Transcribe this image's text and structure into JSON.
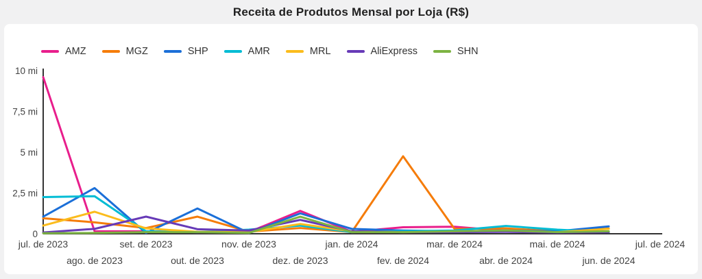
{
  "page": {
    "title": "Receita de Produtos Mensal por Loja (R$)"
  },
  "colors": {
    "page_bg": "#f1f1f2",
    "card_bg": "#ffffff",
    "axis": "#333333",
    "tick_text": "#424242",
    "title_text": "#212121",
    "legend_text": "#333333"
  },
  "chart_data": {
    "type": "line",
    "title": "Receita de Produtos Mensal por Loja (R$)",
    "unit": "mi (milhões de R$)",
    "legend_position": "top",
    "grid": false,
    "ylim": [
      0,
      10
    ],
    "y_ticks": [
      {
        "value": 0,
        "label": "0"
      },
      {
        "value": 2.5,
        "label": "2,5 mi"
      },
      {
        "value": 5,
        "label": "5 mi"
      },
      {
        "value": 7.5,
        "label": "7,5 mi"
      },
      {
        "value": 10,
        "label": "10 mi"
      }
    ],
    "x_labels": [
      "jul. de 2023",
      "ago. de 2023",
      "set. de 2023",
      "out. de 2023",
      "nov. de 2023",
      "dez. de 2023",
      "jan. de 2024",
      "fev. de 2024",
      "mar. de 2024",
      "abr. de 2024",
      "mai. de 2024",
      "jun. de 2024",
      "jul. de 2024"
    ],
    "data_month_count": 12,
    "series": [
      {
        "name": "AMZ",
        "color": "#E81E8C",
        "values": [
          9.6,
          0.15,
          0.15,
          0.1,
          0.1,
          1.4,
          0.12,
          0.4,
          0.43,
          0.18,
          0.1,
          0.12
        ]
      },
      {
        "name": "MGZ",
        "color": "#F57C0A",
        "values": [
          0.95,
          0.7,
          0.35,
          1.05,
          0.13,
          0.35,
          0.1,
          4.75,
          0.3,
          0.33,
          0.15,
          0.32
        ]
      },
      {
        "name": "SHP",
        "color": "#1B6FD8",
        "values": [
          1.05,
          2.8,
          0.05,
          1.55,
          0.05,
          1.25,
          0.3,
          0.2,
          0.15,
          0.2,
          0.15,
          0.45
        ]
      },
      {
        "name": "AMR",
        "color": "#00BCD4",
        "values": [
          2.25,
          2.3,
          0.15,
          0.1,
          0.25,
          0.5,
          0.1,
          0.15,
          0.2,
          0.48,
          0.25,
          0.1
        ]
      },
      {
        "name": "MRL",
        "color": "#FBBC1C",
        "values": [
          0.5,
          1.35,
          0.33,
          0.12,
          0.1,
          0.6,
          0.15,
          0.1,
          0.12,
          0.15,
          0.1,
          0.3
        ]
      },
      {
        "name": "AliExpress",
        "color": "#673AB7",
        "values": [
          0.08,
          0.3,
          1.05,
          0.28,
          0.2,
          0.85,
          0.15,
          0.1,
          0.1,
          0.12,
          0.08,
          0.1
        ]
      },
      {
        "name": "SHN",
        "color": "#7CB342",
        "values": [
          0.03,
          0.05,
          0.1,
          0.1,
          0.05,
          1.05,
          0.1,
          0.1,
          0.15,
          0.2,
          0.1,
          0.15
        ]
      }
    ]
  }
}
